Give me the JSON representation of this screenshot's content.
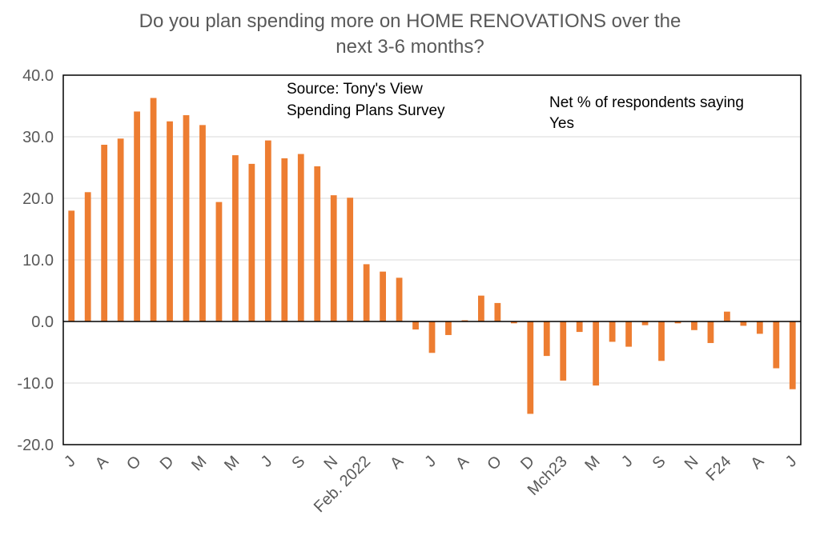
{
  "chart_data": {
    "type": "bar",
    "title_lines": [
      "Do you plan spending more on HOME RENOVATIONS over the",
      "next 3-6 months?"
    ],
    "annotations": {
      "source_lines": [
        "Source: Tony's View",
        "Spending Plans Survey"
      ],
      "note_lines": [
        "Net % of respondents saying",
        "Yes"
      ]
    },
    "ylim": [
      -20,
      40
    ],
    "y_ticks": [
      "40.0",
      "30.0",
      "20.0",
      "10.0",
      "0.0",
      "-10.0",
      "-20.0"
    ],
    "x_tick_labels": [
      {
        "index": 0,
        "label": "J"
      },
      {
        "index": 2,
        "label": "A"
      },
      {
        "index": 4,
        "label": "O"
      },
      {
        "index": 6,
        "label": "D"
      },
      {
        "index": 8,
        "label": "M"
      },
      {
        "index": 10,
        "label": "M"
      },
      {
        "index": 12,
        "label": "J"
      },
      {
        "index": 14,
        "label": "S"
      },
      {
        "index": 16,
        "label": "N"
      },
      {
        "index": 18,
        "label": "Feb. 2022"
      },
      {
        "index": 20,
        "label": "A"
      },
      {
        "index": 22,
        "label": "J"
      },
      {
        "index": 24,
        "label": "A"
      },
      {
        "index": 26,
        "label": "O"
      },
      {
        "index": 28,
        "label": "D"
      },
      {
        "index": 30,
        "label": "Mch23"
      },
      {
        "index": 32,
        "label": "M"
      },
      {
        "index": 34,
        "label": "J"
      },
      {
        "index": 36,
        "label": "S"
      },
      {
        "index": 38,
        "label": "N"
      },
      {
        "index": 40,
        "label": "F24"
      },
      {
        "index": 42,
        "label": "A"
      },
      {
        "index": 44,
        "label": "J"
      }
    ],
    "values": [
      18.0,
      21.0,
      28.7,
      29.7,
      34.1,
      36.3,
      32.5,
      33.5,
      31.9,
      19.4,
      27.0,
      25.6,
      29.4,
      26.5,
      27.2,
      25.2,
      20.5,
      20.1,
      9.3,
      8.1,
      7.1,
      -1.3,
      -5.1,
      -2.2,
      0.2,
      4.2,
      3.0,
      -0.3,
      -15.0,
      -5.6,
      -9.6,
      -1.7,
      -10.4,
      -3.3,
      -4.1,
      -0.6,
      -6.4,
      -0.3,
      -1.4,
      -3.5,
      1.6,
      -0.7,
      -2.0,
      -7.6,
      -11.0
    ],
    "bar_color": "#ED7D31",
    "grid_color": "#D9D9D9",
    "grid": true
  }
}
